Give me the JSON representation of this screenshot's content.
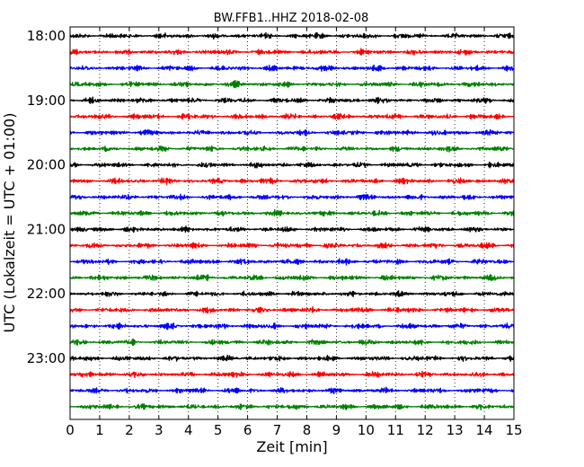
{
  "chart_data": {
    "type": "line",
    "title": "BW.FFB1..HHZ 2018-02-08",
    "xlabel": "Zeit  [min]",
    "ylabel": "UTC (Lokalzeit = UTC + 01:00)",
    "xlim": [
      0,
      15
    ],
    "x_ticks": [
      "0",
      "1",
      "2",
      "3",
      "4",
      "5",
      "6",
      "7",
      "8",
      "9",
      "10",
      "11",
      "12",
      "13",
      "14",
      "15"
    ],
    "y_ticks": [
      "18:00",
      "19:00",
      "20:00",
      "21:00",
      "22:00",
      "23:00"
    ],
    "trace_start_hour": 18,
    "trace_minutes_per_row": 15,
    "trace_count": 24,
    "trace_colors": [
      "#000000",
      "#ff0000",
      "#0000ff",
      "#008000"
    ],
    "grid": "vertical dotted at each minute"
  }
}
